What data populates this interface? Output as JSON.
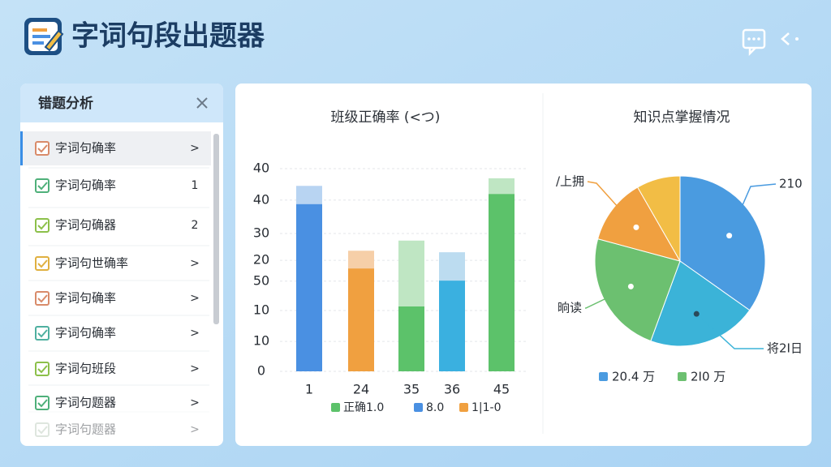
{
  "header": {
    "title": "字词句段出题器"
  },
  "sidebar": {
    "title": "错题分析",
    "items": [
      {
        "label": "字词句确率",
        "marker": ">"
      },
      {
        "label": "字词句确率",
        "marker": "1"
      },
      {
        "label": "字词句确器",
        "marker": "2"
      },
      {
        "label": "字词句世确率",
        "marker": ">"
      },
      {
        "label": "字词句确率",
        "marker": ">"
      },
      {
        "label": "字词句确率",
        "marker": ">"
      },
      {
        "label": "字词句班段",
        "marker": ">"
      },
      {
        "label": "字词句题器",
        "marker": ">"
      },
      {
        "label": "字词句题器",
        "marker": ">"
      }
    ]
  },
  "chart_data": [
    {
      "type": "bar",
      "title": "班级正确率 (<つ)",
      "categories": [
        "1",
        "24",
        "35",
        "36",
        "45"
      ],
      "values": [
        33,
        20.3,
        12.8,
        17.9,
        35
      ],
      "upper_values": [
        3.6,
        3.5,
        13,
        5.6,
        3.1
      ],
      "colors": [
        "#4a90e2",
        "#f0a040",
        "#5cc26a",
        "#3ab0e0",
        "#5cc26a"
      ],
      "upper_colors": [
        "#b8d4f2",
        "#f6cfa8",
        "#bfe6c3",
        "#bcdcf0",
        "#bfe6c3"
      ],
      "ylim": [
        0,
        40
      ],
      "yticks": [
        0,
        {
          "value": 5.9,
          "label": "10"
        },
        {
          "value": 12,
          "label": "10"
        },
        {
          "value": 17.8,
          "label": "50"
        },
        {
          "value": 21.9,
          "label": "20"
        },
        {
          "value": 27.2,
          "label": "30"
        },
        {
          "value": 33.8,
          "label": "40"
        },
        40
      ],
      "grid": true,
      "legend": [
        {
          "label": "正确1.0",
          "color": "#5cc26a"
        },
        {
          "label": "8.0",
          "color": "#4a90e2"
        },
        {
          "label": "1|1-0",
          "color": "#f0a040"
        }
      ]
    },
    {
      "type": "pie",
      "title": "知识点掌握情况",
      "values": [
        34.8,
        20.8,
        23.6,
        12.5,
        8.3
      ],
      "colors": [
        "#4a9be0",
        "#3bb3d8",
        "#6cc070",
        "#f0a040",
        "#f2bd45"
      ],
      "annotations": [
        {
          "label": "210",
          "slice": 0
        },
        {
          "label": "将2Ⅰ日",
          "slice": 1
        },
        {
          "label": "晌读",
          "slice": 2
        },
        {
          "label": "/上拥",
          "slice": 3
        }
      ],
      "legend": [
        {
          "label": "20.4 万",
          "color": "#4a9be0"
        },
        {
          "label": "2Ⅰ0 万",
          "color": "#6cc070"
        }
      ]
    }
  ]
}
